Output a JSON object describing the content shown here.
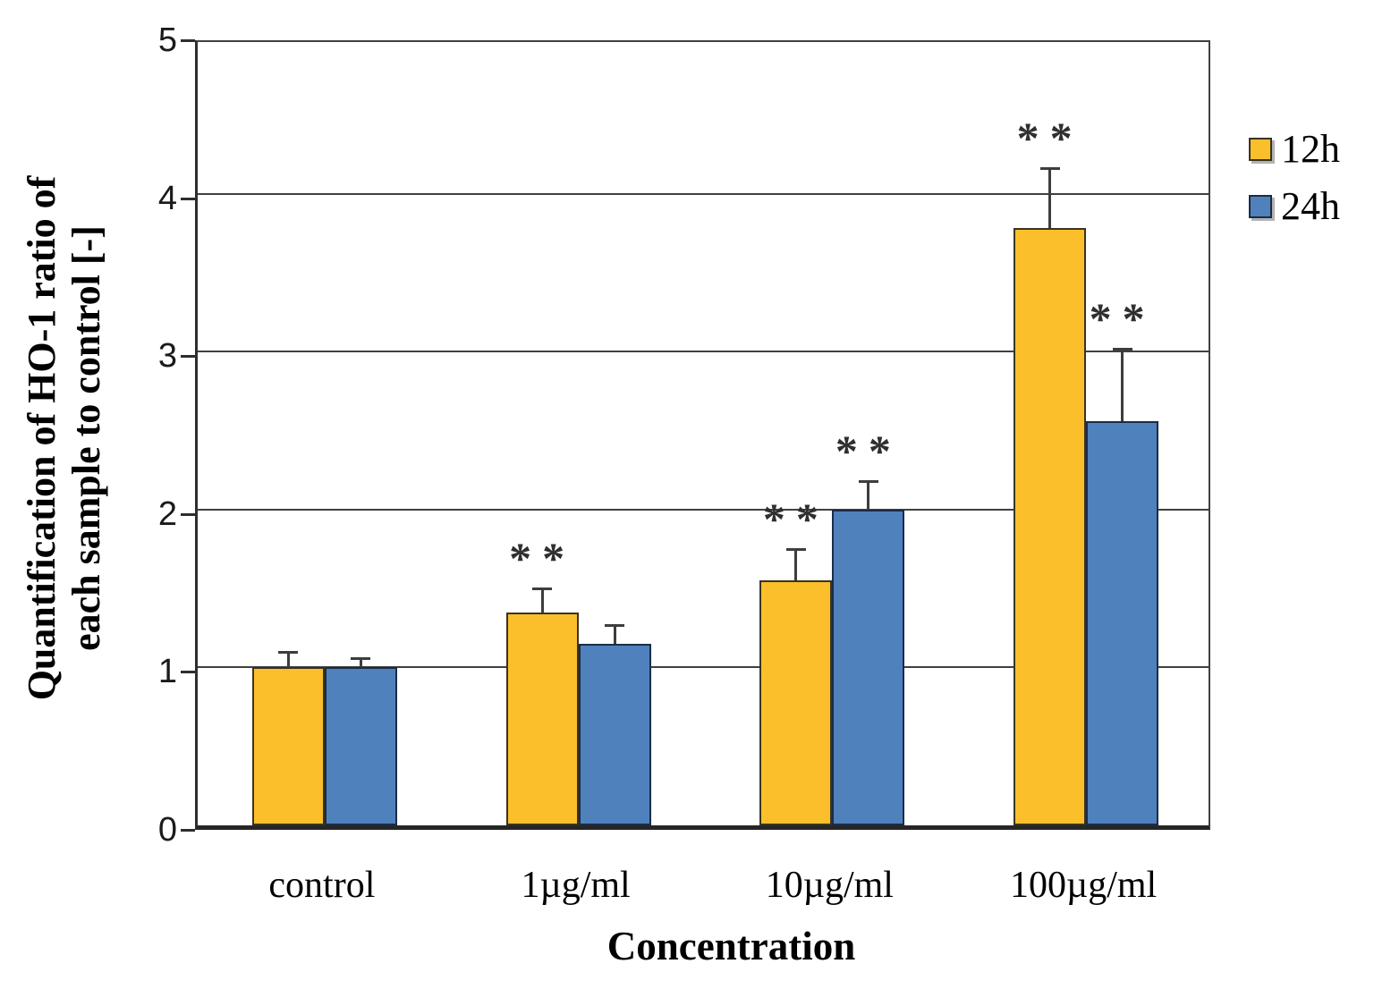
{
  "chart_data": {
    "type": "bar",
    "title": "",
    "xlabel": "Concentration",
    "ylabel": "Quantification of HO-1 ratio of each sample to control [-]",
    "ylabel_lines": [
      "Quantification of HO-1 ratio of",
      "each sample to control [-]"
    ],
    "categories": [
      "control",
      "1µg/ml",
      "10µg/ml",
      "100µg/ml"
    ],
    "series": [
      {
        "name": "12h",
        "color": "#FBBF2C",
        "border_color": "#3a3320",
        "values": [
          1.0,
          1.35,
          1.55,
          3.78
        ],
        "errors": [
          0.1,
          0.15,
          0.2,
          0.38
        ],
        "significance": [
          "",
          "**",
          "**",
          "**"
        ]
      },
      {
        "name": "24h",
        "color": "#4F81BD",
        "border_color": "#1c2b45",
        "values": [
          1.0,
          1.15,
          2.0,
          2.56
        ],
        "errors": [
          0.06,
          0.12,
          0.18,
          0.46
        ],
        "significance": [
          "",
          "",
          "**",
          "**"
        ]
      }
    ],
    "ylim": [
      0,
      5
    ],
    "yticks": [
      0,
      1,
      2,
      3,
      4,
      5
    ],
    "grid": true,
    "legend_position": "right-outside",
    "error_bars": "upper-only",
    "style": {
      "grid_color": "#404040",
      "axis_color": "#262626",
      "error_bar_color": "#3d3d3d",
      "significance_color": "#2f2f2f"
    }
  }
}
